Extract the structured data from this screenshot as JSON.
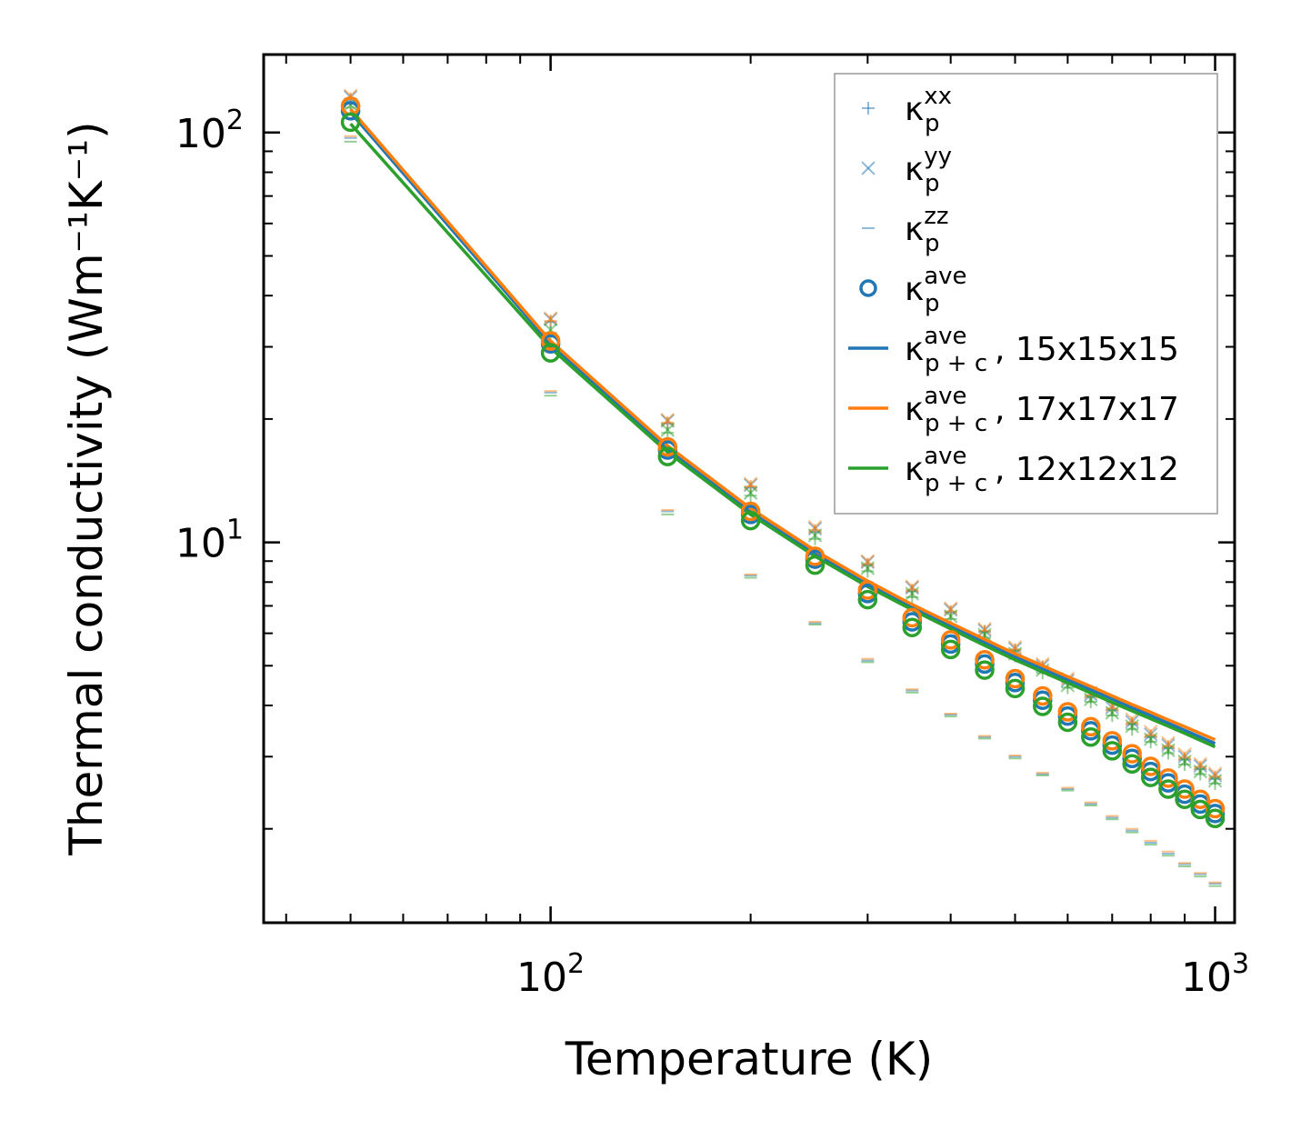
{
  "chart_data": {
    "type": "scatter",
    "xlabel": "Temperature (K)",
    "ylabel": "Thermal conductivity (Wm⁻¹K⁻¹)",
    "xscale": "log",
    "yscale": "log",
    "xlim": [
      37,
      1070
    ],
    "ylim": [
      1.18,
      155
    ],
    "x_ticks": [
      {
        "value": 100,
        "base": "10",
        "exp": "2"
      },
      {
        "value": 1000,
        "base": "10",
        "exp": "3"
      }
    ],
    "y_ticks": [
      {
        "value": 10,
        "base": "10",
        "exp": "1"
      },
      {
        "value": 100,
        "base": "10",
        "exp": "2"
      }
    ],
    "legend_position": "top-right",
    "legend": [
      {
        "symbol": "plus",
        "color": "#1f77b4",
        "main": "κ",
        "sub": "p",
        "sup": "xx",
        "tail": ""
      },
      {
        "symbol": "cross",
        "color": "#1f77b4",
        "main": "κ",
        "sub": "p",
        "sup": "yy",
        "tail": ""
      },
      {
        "symbol": "dash",
        "color": "#1f77b4",
        "main": "κ",
        "sub": "p",
        "sup": "zz",
        "tail": ""
      },
      {
        "symbol": "circle",
        "color": "#1f77b4",
        "main": "κ",
        "sub": "p",
        "sup": "ave",
        "tail": ""
      },
      {
        "symbol": "line",
        "color": "#1f77b4",
        "main": "κ",
        "sub": "p + c",
        "sup": "ave",
        "tail": ", 15x15x15"
      },
      {
        "symbol": "line",
        "color": "#ff7f0e",
        "main": "κ",
        "sub": "p + c",
        "sup": "ave",
        "tail": ", 17x17x17"
      },
      {
        "symbol": "line",
        "color": "#2ca02c",
        "main": "κ",
        "sub": "p + c",
        "sup": "ave",
        "tail": ", 12x12x12"
      }
    ],
    "x": [
      50,
      100,
      150,
      200,
      250,
      300,
      350,
      400,
      450,
      500,
      550,
      600,
      650,
      700,
      750,
      800,
      850,
      900,
      950,
      1000
    ],
    "grids": [
      {
        "name": "15x15x15",
        "color": "#1f77b4",
        "kappa_xx": [
          120,
          34.5,
          19.5,
          13.6,
          10.6,
          8.8,
          7.6,
          6.75,
          6.05,
          5.45,
          4.95,
          4.55,
          4.2,
          3.9,
          3.6,
          3.35,
          3.15,
          2.95,
          2.8,
          2.65
        ],
        "kappa_yy": [
          122,
          35,
          19.8,
          13.8,
          10.8,
          8.95,
          7.75,
          6.85,
          6.1,
          5.5,
          5.0,
          4.6,
          4.25,
          3.95,
          3.65,
          3.4,
          3.2,
          3.0,
          2.85,
          2.7
        ],
        "kappa_zz": [
          97,
          23.2,
          11.9,
          8.3,
          6.35,
          5.15,
          4.35,
          3.8,
          3.35,
          3.0,
          2.72,
          2.5,
          2.3,
          2.13,
          1.98,
          1.85,
          1.74,
          1.64,
          1.55,
          1.47
        ],
        "kappa_ave": [
          113,
          30.5,
          16.8,
          11.7,
          9.1,
          7.5,
          6.4,
          5.65,
          5.05,
          4.55,
          4.12,
          3.77,
          3.47,
          3.2,
          2.97,
          2.76,
          2.59,
          2.43,
          2.3,
          2.18
        ],
        "kappa_pc_ave": [
          112,
          30.5,
          16.9,
          11.9,
          9.4,
          7.95,
          6.95,
          6.25,
          5.7,
          5.25,
          4.92,
          4.62,
          4.37,
          4.15,
          3.95,
          3.78,
          3.62,
          3.48,
          3.35,
          3.23
        ]
      },
      {
        "name": "17x17x17",
        "color": "#ff7f0e",
        "kappa_xx": [
          121,
          34.7,
          19.6,
          13.7,
          10.7,
          8.85,
          7.65,
          6.78,
          6.08,
          5.48,
          4.98,
          4.58,
          4.23,
          3.93,
          3.63,
          3.38,
          3.18,
          2.98,
          2.83,
          2.68
        ],
        "kappa_yy": [
          123,
          35.2,
          19.9,
          13.9,
          10.9,
          9.0,
          7.8,
          6.9,
          6.15,
          5.55,
          5.05,
          4.65,
          4.3,
          4.0,
          3.7,
          3.45,
          3.24,
          3.04,
          2.88,
          2.73
        ],
        "kappa_zz": [
          98,
          23.4,
          12.0,
          8.35,
          6.4,
          5.2,
          4.38,
          3.82,
          3.37,
          3.02,
          2.74,
          2.52,
          2.32,
          2.15,
          2.0,
          1.87,
          1.76,
          1.65,
          1.56,
          1.48
        ],
        "kappa_ave": [
          116,
          31.0,
          17.1,
          11.9,
          9.25,
          7.65,
          6.55,
          5.78,
          5.17,
          4.65,
          4.22,
          3.86,
          3.55,
          3.28,
          3.05,
          2.84,
          2.66,
          2.5,
          2.36,
          2.24
        ],
        "kappa_pc_ave": [
          114,
          31.0,
          17.2,
          12.1,
          9.55,
          8.05,
          7.05,
          6.35,
          5.8,
          5.35,
          5.0,
          4.7,
          4.45,
          4.22,
          4.02,
          3.85,
          3.69,
          3.55,
          3.42,
          3.3
        ]
      },
      {
        "name": "12x12x12",
        "color": "#2ca02c",
        "kappa_xx": [
          115,
          32.5,
          18.5,
          13.0,
          10.2,
          8.5,
          7.35,
          6.5,
          5.85,
          5.28,
          4.8,
          4.42,
          4.08,
          3.78,
          3.5,
          3.26,
          3.06,
          2.87,
          2.72,
          2.58
        ],
        "kappa_yy": [
          117,
          33.0,
          18.8,
          13.2,
          10.4,
          8.65,
          7.5,
          6.6,
          5.95,
          5.35,
          4.88,
          4.48,
          4.14,
          3.84,
          3.56,
          3.31,
          3.11,
          2.92,
          2.76,
          2.62
        ],
        "kappa_zz": [
          95,
          22.8,
          11.7,
          8.2,
          6.3,
          5.1,
          4.3,
          3.76,
          3.32,
          2.97,
          2.7,
          2.48,
          2.28,
          2.11,
          1.96,
          1.83,
          1.72,
          1.62,
          1.53,
          1.45
        ],
        "kappa_ave": [
          106,
          29.0,
          16.2,
          11.3,
          8.8,
          7.25,
          6.2,
          5.48,
          4.88,
          4.4,
          3.98,
          3.64,
          3.35,
          3.1,
          2.88,
          2.67,
          2.5,
          2.36,
          2.23,
          2.12
        ],
        "kappa_pc_ave": [
          105,
          29.8,
          16.6,
          11.7,
          9.25,
          7.8,
          6.85,
          6.15,
          5.6,
          5.17,
          4.83,
          4.54,
          4.29,
          4.07,
          3.88,
          3.71,
          3.56,
          3.42,
          3.29,
          3.17
        ]
      }
    ]
  }
}
